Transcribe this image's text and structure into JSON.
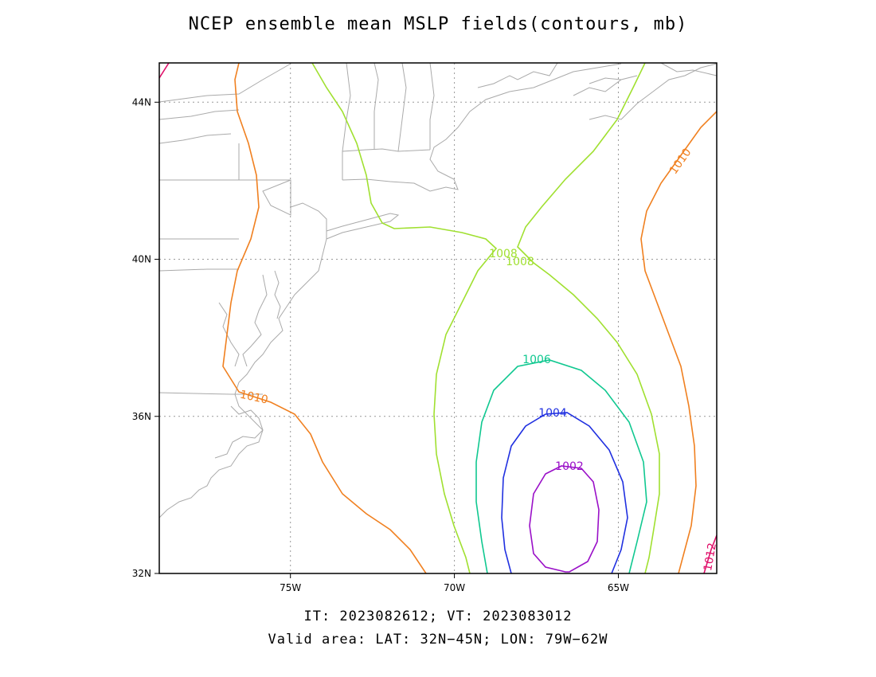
{
  "title": "NCEP ensemble mean MSLP fields(contours, mb)",
  "footer": {
    "line1": "IT: 2023082612; VT: 2023083012",
    "line2": "Valid area: LAT: 32N−45N; LON: 79W−62W"
  },
  "map": {
    "projection": "cylindrical",
    "lon_range": [
      -79,
      -62
    ],
    "lat_range": [
      32,
      45
    ],
    "grid": true,
    "x_ticks": [
      {
        "label": "75W"
      },
      {
        "label": "70W"
      },
      {
        "label": "65W"
      }
    ],
    "y_ticks": [
      {
        "label": "44N"
      },
      {
        "label": "40N"
      },
      {
        "label": "36N"
      },
      {
        "label": "32N"
      }
    ],
    "contours": [
      {
        "value": 1002,
        "label": "1002",
        "color": "#9a10c8"
      },
      {
        "value": 1004,
        "label": "1004",
        "color": "#2030e0"
      },
      {
        "value": 1006,
        "label": "1006",
        "color": "#10c890"
      },
      {
        "value": 1008,
        "label": "1008",
        "color": "#a0e030"
      },
      {
        "value": 1010,
        "label": "1010",
        "color": "#f08020"
      },
      {
        "value": 1012,
        "label": "1012",
        "color": "#e0106a"
      }
    ],
    "coastline_color": "#aaaaaa"
  }
}
